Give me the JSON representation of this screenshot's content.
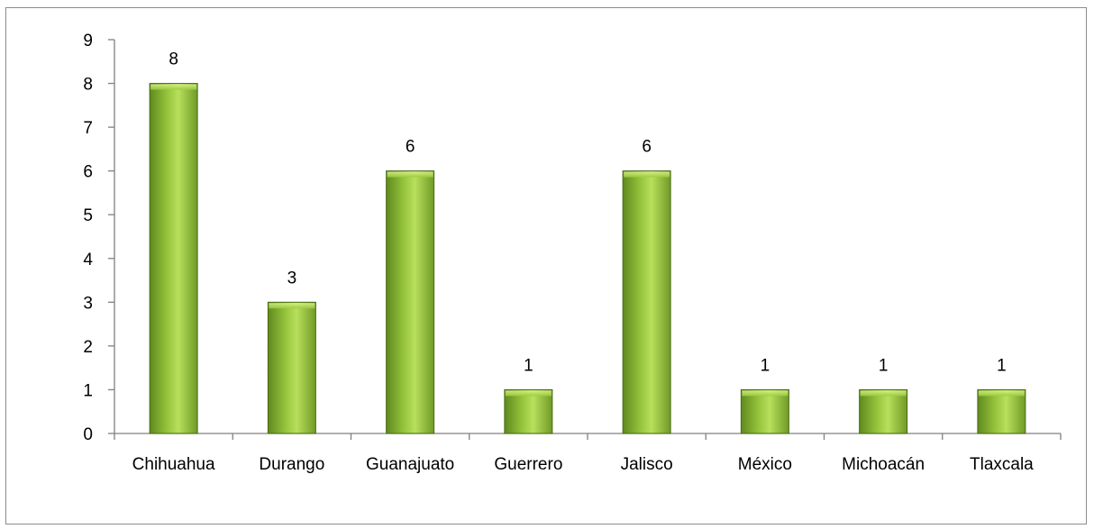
{
  "chart_data": {
    "type": "bar",
    "title": "",
    "xlabel": "",
    "ylabel": "",
    "categories": [
      "Chihuahua",
      "Durango",
      "Guanajuato",
      "Guerrero",
      "Jalisco",
      "México",
      "Michoacán",
      "Tlaxcala"
    ],
    "values": [
      8,
      3,
      6,
      1,
      6,
      1,
      1,
      1
    ],
    "ylim": [
      0,
      9
    ],
    "yticks": [
      "0",
      "1",
      "2",
      "3",
      "4",
      "5",
      "6",
      "7",
      "8",
      "9"
    ],
    "grid": false,
    "legend": "none",
    "data_labels": true,
    "colors": {
      "bar_fill_light": "#b8e05c",
      "bar_fill_mid": "#93c13a",
      "bar_fill_dark": "#5f8a1e",
      "bar_stroke": "#4a6b17",
      "axis": "#808080",
      "frame": "#8c8c8c"
    }
  }
}
